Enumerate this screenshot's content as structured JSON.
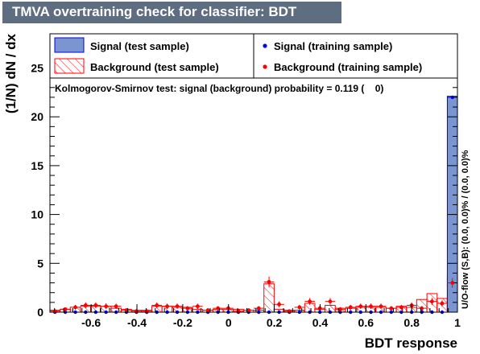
{
  "window": {
    "title": "TMVA overtraining check for classifier: BDT"
  },
  "colors": {
    "signal_fill": "#7b95d0",
    "signal_line": "#0000ee",
    "background_line": "#ff0000",
    "title_bar": "#5e6d80"
  },
  "chart_data": {
    "type": "histogram",
    "xlabel": "BDT response",
    "ylabel": "(1/N) dN / dx",
    "xlim": [
      -0.78,
      1.0
    ],
    "ylim": [
      0,
      28.5
    ],
    "xticks": [
      -0.6,
      -0.4,
      -0.2,
      0,
      0.2,
      0.4,
      0.6,
      0.8,
      1
    ],
    "xtick_labels": [
      "-0.6",
      "-0.4",
      "-0.2",
      "0",
      "0.2",
      "0.4",
      "0.6",
      "0.8",
      "1"
    ],
    "yticks": [
      0,
      5,
      10,
      15,
      20,
      25
    ],
    "ytick_labels": [
      "0",
      "5",
      "10",
      "15",
      "20",
      "25"
    ],
    "bin_width": 0.0445,
    "bin_centers": [
      -0.758,
      -0.713,
      -0.669,
      -0.624,
      -0.58,
      -0.535,
      -0.491,
      -0.446,
      -0.402,
      -0.357,
      -0.313,
      -0.268,
      -0.224,
      -0.179,
      -0.135,
      -0.09,
      -0.046,
      -0.001,
      0.043,
      0.088,
      0.132,
      0.177,
      0.221,
      0.266,
      0.31,
      0.355,
      0.399,
      0.444,
      0.488,
      0.533,
      0.577,
      0.622,
      0.666,
      0.711,
      0.755,
      0.8,
      0.844,
      0.889,
      0.933,
      0.978
    ],
    "legend": {
      "placement": "top",
      "entries": [
        {
          "label": "Signal (test sample)",
          "style": "filled-box"
        },
        {
          "label": "Signal (training sample)",
          "style": "blue-marker"
        },
        {
          "label": "Background (test sample)",
          "style": "hatched-box"
        },
        {
          "label": "Background (training sample)",
          "style": "red-marker"
        }
      ]
    },
    "annotation": "Kolmogorov-Smirnov test: signal (background) probability = 0.119 (    0)",
    "side_label": "U/O-flow (S,B): (0.0, 0.0)% / (0.0, 0.0)%",
    "series": [
      {
        "name": "Signal (test sample)",
        "style": "filled-histogram",
        "values": [
          0,
          0,
          0,
          0,
          0,
          0,
          0,
          0,
          0,
          0,
          0,
          0,
          0,
          0,
          0,
          0,
          0,
          0,
          0,
          0,
          0,
          0,
          0,
          0,
          0,
          0,
          0,
          0,
          0,
          0,
          0,
          0,
          0,
          0,
          0,
          0,
          0,
          0,
          0,
          22.1
        ]
      },
      {
        "name": "Background (test sample)",
        "style": "hatched-histogram",
        "values": [
          0.2,
          0.3,
          0.5,
          0.6,
          0.6,
          0.6,
          0.4,
          0.3,
          0.2,
          0.2,
          0.6,
          0.6,
          0.5,
          0.5,
          0.3,
          0.2,
          0.3,
          0.3,
          0.3,
          0.2,
          0.2,
          2.9,
          0.3,
          0.2,
          0.2,
          0.9,
          0.3,
          0.7,
          0.4,
          0.4,
          0.5,
          0.5,
          0.5,
          0.4,
          0.6,
          0.5,
          1.3,
          1.9,
          1.4,
          3.8
        ]
      },
      {
        "name": "Signal (training sample)",
        "style": "markers",
        "values": [
          0,
          0,
          0,
          0,
          0,
          0,
          0,
          0,
          0,
          0,
          0,
          0,
          0,
          0,
          0,
          0,
          0,
          0,
          0,
          0,
          0,
          0,
          0,
          0,
          0,
          0,
          0,
          0,
          0,
          0,
          0,
          0,
          0,
          0,
          0,
          0,
          0,
          0,
          0,
          22.0
        ]
      },
      {
        "name": "Background (training sample)",
        "style": "markers-errorbars",
        "values": [
          0.1,
          0.3,
          0.5,
          0.7,
          0.7,
          0.6,
          0.6,
          0.2,
          0.1,
          0.1,
          0.7,
          0.6,
          0.6,
          0.4,
          0.6,
          0.2,
          0.4,
          0.4,
          0.1,
          0.2,
          0.4,
          3.1,
          0.8,
          0.1,
          0.5,
          1.1,
          0.4,
          1.1,
          0.3,
          0.5,
          0.6,
          0.6,
          0.6,
          0.4,
          0.5,
          0.7,
          0.4,
          1.1,
          0.9,
          3.0
        ],
        "errors": [
          0.15,
          0.2,
          0.25,
          0.3,
          0.3,
          0.3,
          0.28,
          0.18,
          0.14,
          0.14,
          0.3,
          0.28,
          0.28,
          0.22,
          0.28,
          0.15,
          0.22,
          0.22,
          0.14,
          0.15,
          0.22,
          0.55,
          0.3,
          0.14,
          0.25,
          0.35,
          0.22,
          0.35,
          0.2,
          0.25,
          0.28,
          0.28,
          0.28,
          0.22,
          0.25,
          0.3,
          0.22,
          0.35,
          0.32,
          0.5
        ]
      }
    ]
  }
}
